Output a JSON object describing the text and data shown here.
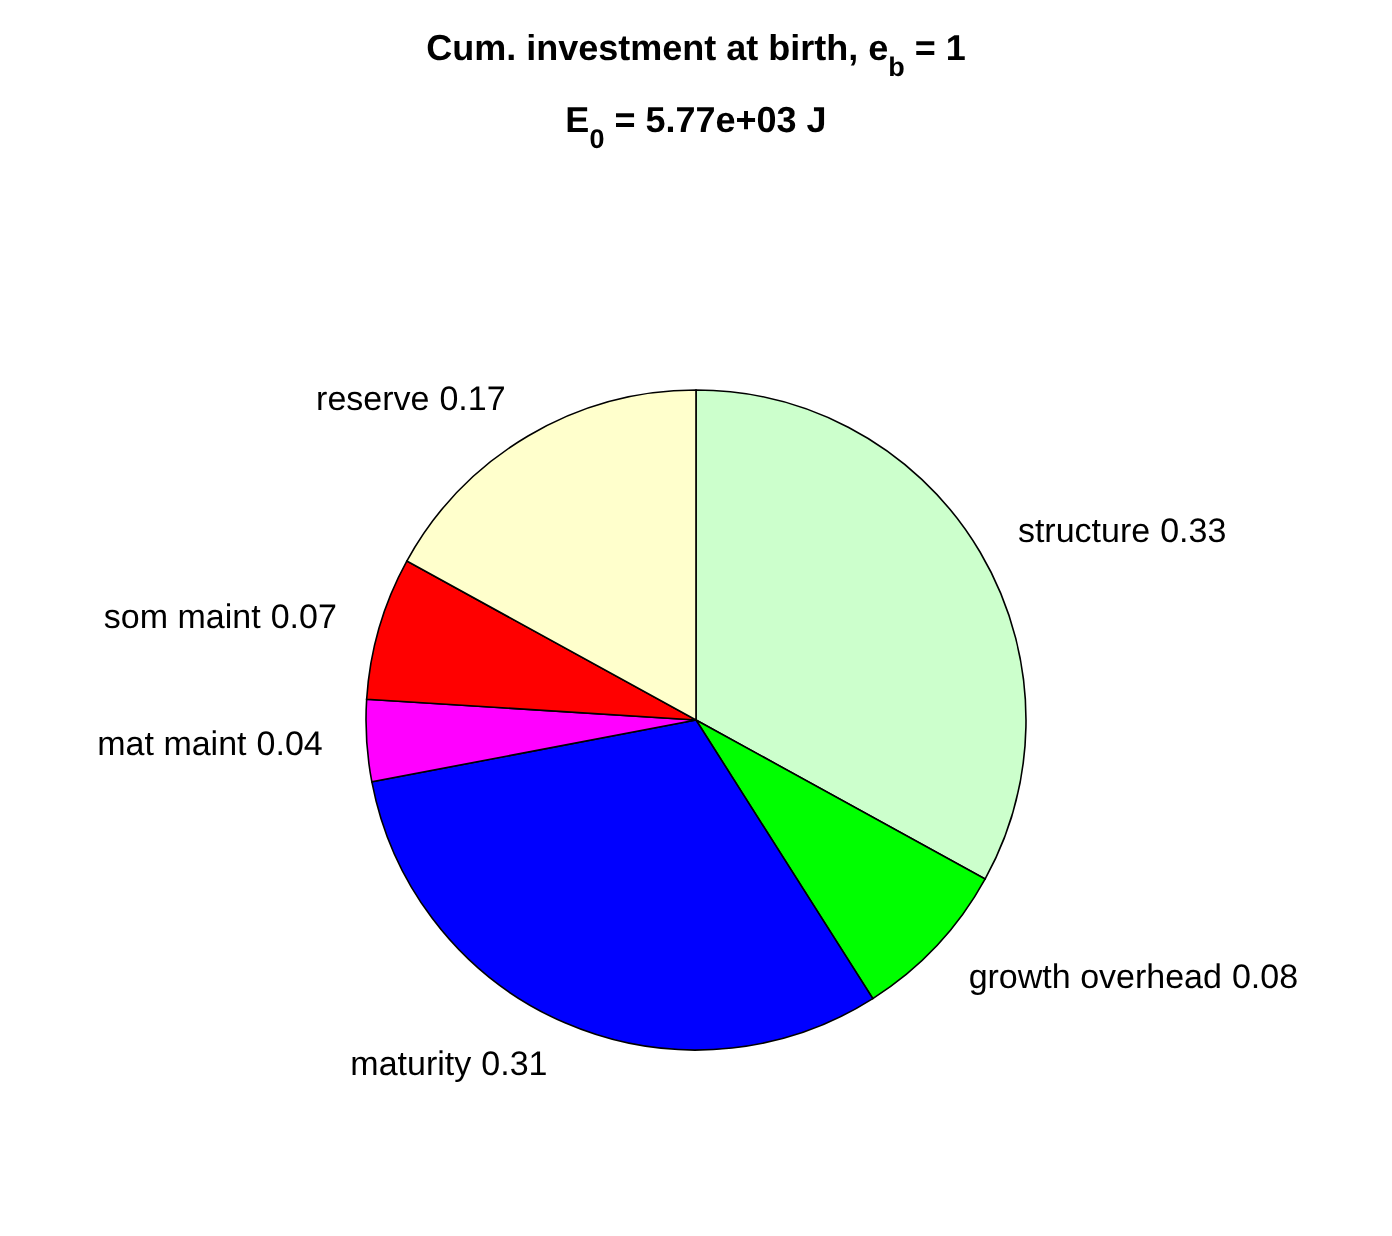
{
  "chart_data": {
    "type": "pie",
    "title": "Cum. investment at birth, e$_{b}$ = 1",
    "subtitle": "E$_{0}$ = 5.77e+03 J",
    "categories": [
      "structure",
      "growth overhead",
      "maturity",
      "mat maint",
      "som maint",
      "reserve"
    ],
    "values": [
      0.33,
      0.08,
      0.31,
      0.04,
      0.07,
      0.17
    ],
    "colors": [
      "#ccffcc",
      "#00ff00",
      "#0000ff",
      "#ff00ff",
      "#ff0000",
      "#ffffcc"
    ],
    "data_labels": true
  }
}
